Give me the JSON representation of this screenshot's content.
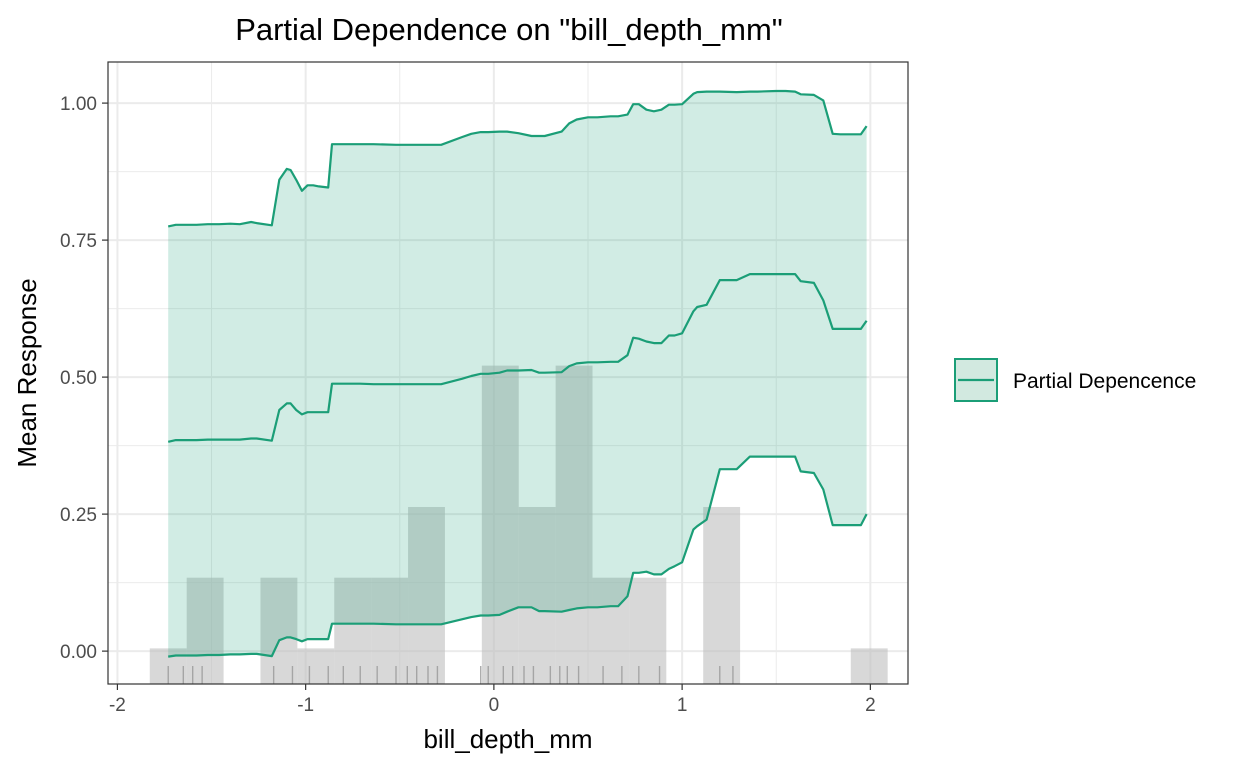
{
  "chart_data": {
    "type": "line",
    "title": "Partial Dependence on \"bill_depth_mm\"",
    "xlabel": "bill_depth_mm",
    "ylabel": "Mean Response",
    "xlim": [
      -2.05,
      2.2
    ],
    "ylim": [
      -0.06,
      1.075
    ],
    "x_ticks": [
      "-2",
      "-1",
      "0",
      "1",
      "2"
    ],
    "x_tick_values": [
      -2,
      -1,
      0,
      1,
      2
    ],
    "y_ticks": [
      "0.00",
      "0.25",
      "0.50",
      "0.75",
      "1.00"
    ],
    "y_tick_values": [
      0,
      0.25,
      0.5,
      0.75,
      1.0
    ],
    "grid": true,
    "legend": {
      "position": "right",
      "label": "Partial Depencence"
    },
    "colors": {
      "line": "#1b9e77",
      "band": "#1b9e77",
      "histogram": "#bebebe",
      "rug": "#999999",
      "grid": "#ebebeb"
    },
    "histogram": {
      "bin_width": 0.196,
      "bins": [
        {
          "x": -1.73,
          "height": 0.065
        },
        {
          "x": -1.534,
          "height": 0.194
        },
        {
          "x": -1.338,
          "height": 0.0
        },
        {
          "x": -1.142,
          "height": 0.194
        },
        {
          "x": -0.946,
          "height": 0.065
        },
        {
          "x": -0.75,
          "height": 0.194
        },
        {
          "x": -0.554,
          "height": 0.194
        },
        {
          "x": -0.358,
          "height": 0.323
        },
        {
          "x": -0.162,
          "height": 0.0
        },
        {
          "x": 0.034,
          "height": 0.581
        },
        {
          "x": 0.23,
          "height": 0.323
        },
        {
          "x": 0.426,
          "height": 0.581
        },
        {
          "x": 0.622,
          "height": 0.194
        },
        {
          "x": 0.818,
          "height": 0.194
        },
        {
          "x": 1.014,
          "height": 0.0
        },
        {
          "x": 1.21,
          "height": 0.323
        },
        {
          "x": 1.406,
          "height": 0.0
        },
        {
          "x": 1.602,
          "height": 0.0
        },
        {
          "x": 1.798,
          "height": 0.0
        },
        {
          "x": 1.994,
          "height": 0.065
        }
      ]
    },
    "rug": [
      -1.73,
      -1.65,
      -1.6,
      -1.55,
      -1.17,
      -1.07,
      -0.98,
      -0.88,
      -0.8,
      -0.71,
      -0.62,
      -0.52,
      -0.46,
      -0.41,
      -0.35,
      -0.3,
      -0.07,
      -0.03,
      0.05,
      0.1,
      0.16,
      0.21,
      0.3,
      0.35,
      0.39,
      0.45,
      0.58,
      0.68,
      0.77,
      0.88,
      1.2,
      1.27
    ],
    "series": [
      {
        "name": "Partial Depencence",
        "role": "upper",
        "x": [
          -1.73,
          -1.69,
          -1.64,
          -1.58,
          -1.52,
          -1.46,
          -1.4,
          -1.35,
          -1.29,
          -1.26,
          -1.18,
          -1.14,
          -1.1,
          -1.08,
          -1.05,
          -1.02,
          -0.99,
          -0.96,
          -0.93,
          -0.88,
          -0.86,
          -0.84,
          -0.8,
          -0.76,
          -0.71,
          -0.64,
          -0.52,
          -0.4,
          -0.28,
          -0.17,
          -0.12,
          -0.07,
          -0.04,
          -0.03,
          0.03,
          0.07,
          0.13,
          0.2,
          0.24,
          0.27,
          0.36,
          0.4,
          0.44,
          0.5,
          0.55,
          0.62,
          0.66,
          0.71,
          0.74,
          0.77,
          0.81,
          0.85,
          0.89,
          0.93,
          0.96,
          1.0,
          1.06,
          1.08,
          1.13,
          1.2,
          1.29,
          1.36,
          1.4,
          1.5,
          1.55,
          1.6,
          1.63,
          1.7,
          1.75,
          1.8,
          1.84,
          1.95,
          1.98
        ],
        "y": [
          0.775,
          0.778,
          0.778,
          0.778,
          0.779,
          0.779,
          0.78,
          0.779,
          0.783,
          0.781,
          0.777,
          0.86,
          0.88,
          0.878,
          0.86,
          0.84,
          0.85,
          0.85,
          0.848,
          0.846,
          0.925,
          0.925,
          0.925,
          0.925,
          0.925,
          0.925,
          0.924,
          0.924,
          0.924,
          0.938,
          0.944,
          0.947,
          0.947,
          0.947,
          0.948,
          0.948,
          0.945,
          0.94,
          0.94,
          0.94,
          0.948,
          0.963,
          0.97,
          0.974,
          0.974,
          0.976,
          0.976,
          0.979,
          0.998,
          0.998,
          0.988,
          0.985,
          0.988,
          0.997,
          0.997,
          0.998,
          1.017,
          1.02,
          1.021,
          1.021,
          1.02,
          1.021,
          1.021,
          1.022,
          1.022,
          1.021,
          1.016,
          1.015,
          1.005,
          0.944,
          0.943,
          0.943,
          0.958
        ]
      },
      {
        "name": "Partial Depencence",
        "role": "mean",
        "x": [
          -1.73,
          -1.69,
          -1.64,
          -1.58,
          -1.52,
          -1.46,
          -1.4,
          -1.35,
          -1.29,
          -1.26,
          -1.18,
          -1.14,
          -1.1,
          -1.08,
          -1.05,
          -1.02,
          -0.99,
          -0.96,
          -0.93,
          -0.88,
          -0.86,
          -0.84,
          -0.8,
          -0.76,
          -0.71,
          -0.64,
          -0.52,
          -0.4,
          -0.28,
          -0.17,
          -0.12,
          -0.07,
          -0.04,
          -0.03,
          0.03,
          0.07,
          0.13,
          0.2,
          0.24,
          0.27,
          0.36,
          0.4,
          0.44,
          0.5,
          0.55,
          0.62,
          0.66,
          0.71,
          0.74,
          0.77,
          0.81,
          0.85,
          0.89,
          0.93,
          0.96,
          1.0,
          1.06,
          1.08,
          1.13,
          1.2,
          1.29,
          1.36,
          1.4,
          1.5,
          1.55,
          1.6,
          1.63,
          1.7,
          1.75,
          1.8,
          1.84,
          1.95,
          1.98
        ],
        "y": [
          0.382,
          0.385,
          0.385,
          0.385,
          0.386,
          0.386,
          0.386,
          0.386,
          0.388,
          0.388,
          0.384,
          0.44,
          0.452,
          0.452,
          0.44,
          0.432,
          0.436,
          0.436,
          0.436,
          0.436,
          0.488,
          0.488,
          0.488,
          0.488,
          0.488,
          0.487,
          0.487,
          0.487,
          0.487,
          0.497,
          0.502,
          0.506,
          0.506,
          0.506,
          0.508,
          0.512,
          0.512,
          0.513,
          0.508,
          0.508,
          0.509,
          0.52,
          0.525,
          0.527,
          0.527,
          0.528,
          0.528,
          0.54,
          0.572,
          0.57,
          0.565,
          0.562,
          0.562,
          0.576,
          0.576,
          0.58,
          0.62,
          0.628,
          0.632,
          0.677,
          0.677,
          0.688,
          0.688,
          0.688,
          0.688,
          0.688,
          0.675,
          0.672,
          0.64,
          0.588,
          0.588,
          0.588,
          0.603
        ]
      },
      {
        "name": "Partial Depencence",
        "role": "lower",
        "x": [
          -1.73,
          -1.69,
          -1.64,
          -1.58,
          -1.52,
          -1.46,
          -1.4,
          -1.35,
          -1.29,
          -1.26,
          -1.18,
          -1.14,
          -1.1,
          -1.08,
          -1.05,
          -1.02,
          -0.99,
          -0.96,
          -0.93,
          -0.88,
          -0.86,
          -0.84,
          -0.8,
          -0.76,
          -0.71,
          -0.64,
          -0.52,
          -0.4,
          -0.28,
          -0.17,
          -0.12,
          -0.07,
          -0.04,
          -0.03,
          0.03,
          0.07,
          0.13,
          0.2,
          0.24,
          0.27,
          0.36,
          0.4,
          0.44,
          0.5,
          0.55,
          0.62,
          0.66,
          0.71,
          0.74,
          0.77,
          0.81,
          0.85,
          0.89,
          0.93,
          0.96,
          1.0,
          1.06,
          1.08,
          1.13,
          1.2,
          1.29,
          1.36,
          1.4,
          1.5,
          1.55,
          1.6,
          1.63,
          1.7,
          1.75,
          1.8,
          1.84,
          1.95,
          1.98
        ],
        "y": [
          -0.01,
          -0.008,
          -0.008,
          -0.008,
          -0.007,
          -0.007,
          -0.006,
          -0.006,
          -0.005,
          -0.005,
          -0.009,
          0.02,
          0.025,
          0.025,
          0.022,
          0.018,
          0.022,
          0.022,
          0.022,
          0.022,
          0.05,
          0.05,
          0.05,
          0.05,
          0.05,
          0.05,
          0.049,
          0.049,
          0.049,
          0.058,
          0.062,
          0.065,
          0.065,
          0.065,
          0.066,
          0.072,
          0.08,
          0.08,
          0.073,
          0.073,
          0.072,
          0.075,
          0.078,
          0.08,
          0.08,
          0.082,
          0.082,
          0.1,
          0.143,
          0.143,
          0.145,
          0.14,
          0.14,
          0.15,
          0.155,
          0.162,
          0.222,
          0.228,
          0.24,
          0.332,
          0.332,
          0.355,
          0.355,
          0.355,
          0.355,
          0.355,
          0.328,
          0.325,
          0.295,
          0.23,
          0.23,
          0.23,
          0.25
        ]
      }
    ]
  }
}
